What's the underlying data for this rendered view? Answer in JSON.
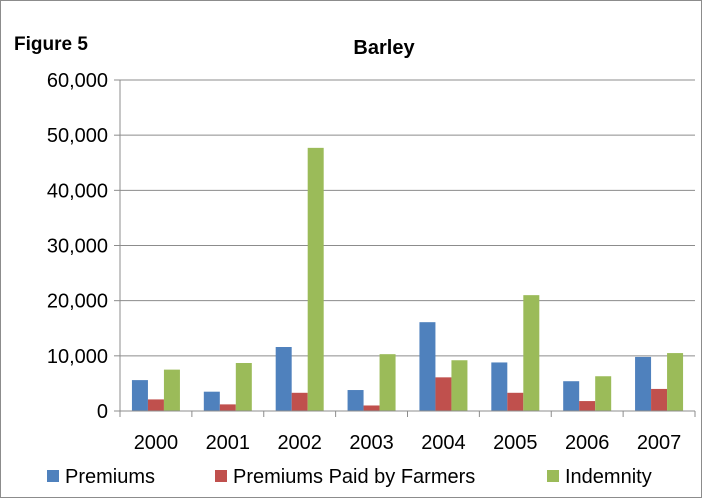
{
  "figure_label": "Figure 5",
  "chart_data": {
    "type": "bar",
    "title": "Barley",
    "xlabel": "",
    "ylabel": "",
    "categories": [
      "2000",
      "2001",
      "2002",
      "2003",
      "2004",
      "2005",
      "2006",
      "2007"
    ],
    "series": [
      {
        "name": "Premiums",
        "color": "#4f81bd",
        "values": [
          5600,
          3500,
          11600,
          3800,
          16100,
          8800,
          5400,
          9800
        ]
      },
      {
        "name": "Premiums Paid by Farmers",
        "color": "#c0504d",
        "values": [
          2100,
          1200,
          3300,
          1000,
          6100,
          3300,
          1800,
          4000
        ]
      },
      {
        "name": "Indemnity",
        "color": "#9bbb59",
        "values": [
          7500,
          8700,
          47700,
          10300,
          9200,
          21000,
          6300,
          10500
        ]
      }
    ],
    "ylim": [
      0,
      60000
    ],
    "yticks": [
      0,
      10000,
      20000,
      30000,
      40000,
      50000,
      60000
    ],
    "ytick_labels": [
      "0",
      "10,000",
      "20,000",
      "30,000",
      "40,000",
      "50,000",
      "60,000"
    ],
    "grid": true,
    "legend": "bottom"
  }
}
